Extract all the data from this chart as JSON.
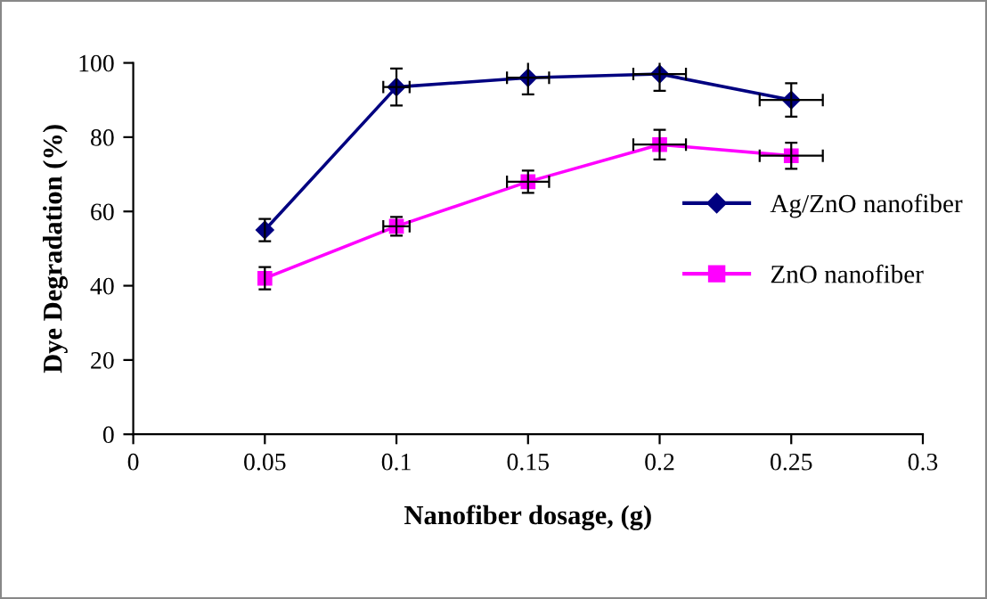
{
  "chart_data": {
    "type": "line",
    "xlabel": "Nanofiber dosage, (g)",
    "ylabel": "Dye Degradation (%)",
    "x": [
      0.05,
      0.1,
      0.15,
      0.2,
      0.25
    ],
    "series": [
      {
        "name": "Ag/ZnO nanofiber",
        "color": "#000080",
        "marker": "diamond",
        "values": [
          55,
          93.5,
          96,
          97,
          90
        ],
        "errors": [
          3,
          5,
          4.5,
          4.5,
          4.5
        ],
        "xerrors": [
          null,
          0.005,
          0.008,
          0.01,
          0.012
        ]
      },
      {
        "name": "ZnO nanofiber",
        "color": "#ff00ff",
        "marker": "square",
        "values": [
          42,
          56,
          68,
          78,
          75
        ],
        "errors": [
          3,
          2.5,
          3,
          4,
          3.5
        ],
        "xerrors": [
          null,
          0.005,
          0.008,
          0.01,
          0.012
        ]
      }
    ],
    "xlim": [
      0,
      0.3
    ],
    "xticks": [
      0,
      0.05,
      0.1,
      0.15,
      0.2,
      0.25,
      0.3
    ],
    "ylim": [
      0,
      100
    ],
    "yticks": [
      0,
      20,
      40,
      60,
      80,
      100
    ],
    "grid": false,
    "legend": "right",
    "line_style": "solid"
  }
}
